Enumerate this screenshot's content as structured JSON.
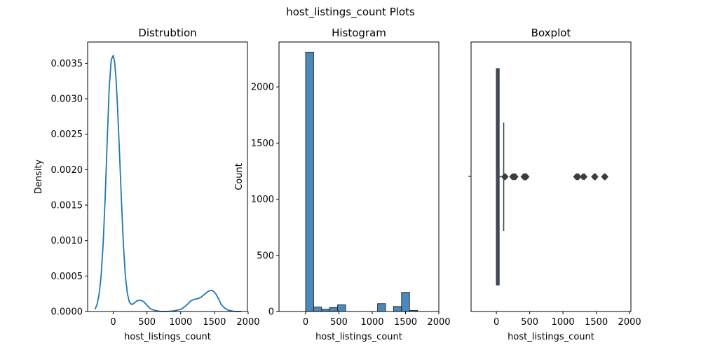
{
  "figure_title": "host_listings_count Plots",
  "chart_data": [
    {
      "type": "line",
      "title": "Distrubtion",
      "xlabel": "host_listings_count",
      "ylabel": "Density",
      "xlim": [
        -380,
        1990
      ],
      "ylim": [
        0,
        0.0038
      ],
      "x_ticks": [
        0,
        500,
        1000,
        1500,
        2000
      ],
      "y_ticks": [
        0.0,
        0.0005,
        0.001,
        0.0015,
        0.002,
        0.0025,
        0.003,
        0.0035
      ],
      "y_tick_labels": [
        "0.0000",
        "0.0005",
        "0.0010",
        "0.0015",
        "0.0020",
        "0.0025",
        "0.0030",
        "0.0035"
      ],
      "color": "#1f77b4",
      "series": [
        {
          "x": [
            -270,
            -240,
            -210,
            -180,
            -150,
            -120,
            -90,
            -60,
            -30,
            0,
            20,
            40,
            60,
            90,
            120,
            150,
            180,
            210,
            240,
            270,
            300,
            350,
            400,
            450,
            500,
            550,
            600,
            700,
            800,
            900,
            1000,
            1050,
            1100,
            1150,
            1200,
            1250,
            1300,
            1350,
            1400,
            1450,
            1480,
            1520,
            1560,
            1600,
            1650,
            1700,
            1750,
            1800,
            1900
          ],
          "y": [
            3e-05,
            0.0001,
            0.00024,
            0.0005,
            0.00095,
            0.0016,
            0.0024,
            0.00315,
            0.00355,
            0.00361,
            0.00352,
            0.0033,
            0.00295,
            0.0023,
            0.0016,
            0.00095,
            0.0005,
            0.00025,
            0.00013,
            0.0001,
            0.00011,
            0.00015,
            0.00016,
            0.00014,
            9e-05,
            4e-05,
            2e-05,
            0.0,
            0.0,
            1e-05,
            3e-05,
            6e-05,
            0.0001,
            0.00015,
            0.00017,
            0.00018,
            0.0002,
            0.00024,
            0.00028,
            0.0003,
            0.00029,
            0.00025,
            0.00018,
            0.0001,
            5e-05,
            2e-05,
            1e-05,
            0.0,
            0.0
          ]
        }
      ]
    },
    {
      "type": "bar",
      "title": "Histogram",
      "xlabel": "host_listings_count",
      "ylabel": "Count",
      "xlim": [
        -400,
        2000
      ],
      "ylim": [
        0,
        2400
      ],
      "x_ticks": [
        0,
        500,
        1000,
        1500,
        2000
      ],
      "y_ticks": [
        0,
        500,
        1000,
        1500,
        2000
      ],
      "bin_width": 120,
      "bin_starts": [
        0,
        120,
        240,
        360,
        480,
        600,
        720,
        840,
        960,
        1080,
        1200,
        1320,
        1440,
        1560
      ],
      "values": [
        2310,
        40,
        20,
        35,
        60,
        0,
        0,
        0,
        0,
        70,
        0,
        45,
        170,
        10
      ],
      "color": "#4a89ba"
    },
    {
      "type": "box",
      "title": "Boxplot",
      "xlabel": "host_listings_count",
      "xlim": [
        -380,
        2020
      ],
      "x_ticks": [
        0,
        500,
        1000,
        1500,
        2000
      ],
      "box_q1": 0,
      "box_q3": 40,
      "whisker_high": 110,
      "outliers": [
        120,
        135,
        240,
        260,
        275,
        285,
        410,
        420,
        430,
        440,
        450,
        1200,
        1215,
        1230,
        1300,
        1320,
        1470,
        1485,
        1620,
        1635
      ],
      "box_color": "#3e4b5e"
    }
  ]
}
